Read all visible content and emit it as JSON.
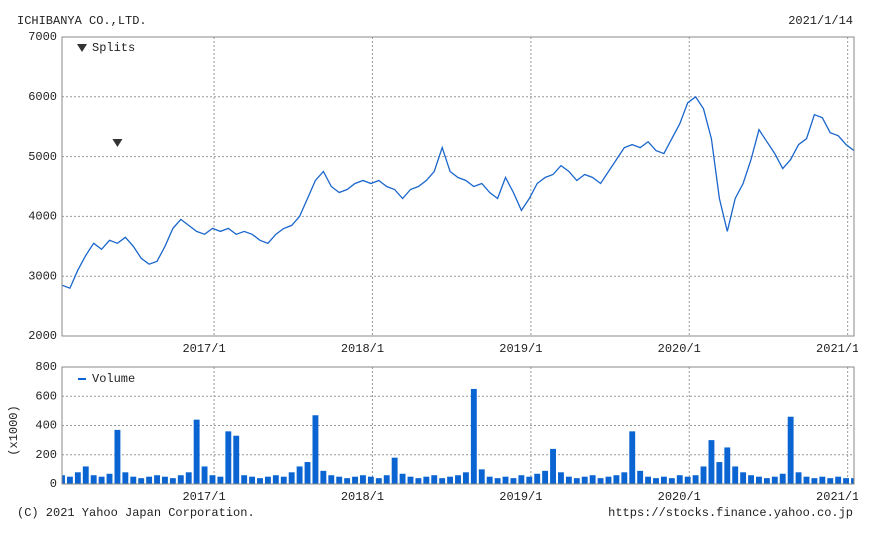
{
  "header": {
    "company": "ICHIBANYA CO.,LTD.",
    "date": "2021/1/14"
  },
  "footer": {
    "copyright": "(C) 2021 Yahoo Japan Corporation.",
    "url": "https://stocks.finance.yahoo.co.jp"
  },
  "chart_data": [
    {
      "type": "line",
      "color": "#1a66cc",
      "splits": {
        "name": "Splits",
        "x": [
          2016.39
        ]
      },
      "x": [
        2016.04,
        2016.09,
        2016.14,
        2016.19,
        2016.24,
        2016.29,
        2016.34,
        2016.39,
        2016.44,
        2016.49,
        2016.54,
        2016.59,
        2016.64,
        2016.69,
        2016.74,
        2016.79,
        2016.84,
        2016.89,
        2016.94,
        2016.99,
        2017.04,
        2017.09,
        2017.14,
        2017.19,
        2017.24,
        2017.29,
        2017.34,
        2017.39,
        2017.44,
        2017.49,
        2017.54,
        2017.59,
        2017.64,
        2017.69,
        2017.74,
        2017.79,
        2017.84,
        2017.89,
        2017.94,
        2017.99,
        2018.04,
        2018.09,
        2018.14,
        2018.19,
        2018.24,
        2018.29,
        2018.34,
        2018.39,
        2018.44,
        2018.49,
        2018.54,
        2018.59,
        2018.64,
        2018.69,
        2018.74,
        2018.79,
        2018.84,
        2018.89,
        2018.94,
        2018.99,
        2019.04,
        2019.09,
        2019.14,
        2019.19,
        2019.24,
        2019.29,
        2019.34,
        2019.39,
        2019.44,
        2019.49,
        2019.54,
        2019.59,
        2019.64,
        2019.69,
        2019.74,
        2019.79,
        2019.84,
        2019.89,
        2019.94,
        2019.99,
        2020.04,
        2020.09,
        2020.14,
        2020.19,
        2020.24,
        2020.29,
        2020.34,
        2020.39,
        2020.44,
        2020.49,
        2020.54,
        2020.59,
        2020.64,
        2020.69,
        2020.74,
        2020.79,
        2020.84,
        2020.89,
        2020.94,
        2020.99,
        2021.04
      ],
      "values": [
        2850,
        2800,
        3100,
        3350,
        3550,
        3450,
        3600,
        3550,
        3650,
        3500,
        3300,
        3200,
        3250,
        3500,
        3800,
        3950,
        3850,
        3750,
        3700,
        3800,
        3750,
        3800,
        3700,
        3750,
        3700,
        3600,
        3550,
        3700,
        3800,
        3850,
        4000,
        4300,
        4600,
        4750,
        4500,
        4400,
        4450,
        4550,
        4600,
        4550,
        4600,
        4500,
        4450,
        4300,
        4450,
        4500,
        4600,
        4750,
        5150,
        4750,
        4650,
        4600,
        4500,
        4550,
        4400,
        4300,
        4650,
        4400,
        4100,
        4300,
        4550,
        4650,
        4700,
        4850,
        4750,
        4600,
        4700,
        4650,
        4550,
        4750,
        4950,
        5150,
        5200,
        5150,
        5250,
        5100,
        5050,
        5300,
        5550,
        5900,
        6000,
        5800,
        5300,
        4300,
        3750,
        4300,
        4550,
        4950,
        5450,
        5250,
        5050,
        4800,
        4950,
        5200,
        5300,
        5700,
        5650,
        5400,
        5350,
        5200,
        5100
      ],
      "xlim": [
        2016.04,
        2021.04
      ],
      "xticks": [
        {
          "value": 2017.0,
          "label": "2017/1"
        },
        {
          "value": 2018.0,
          "label": "2018/1"
        },
        {
          "value": 2019.0,
          "label": "2019/1"
        },
        {
          "value": 2020.0,
          "label": "2020/1"
        },
        {
          "value": 2021.0,
          "label": "2021/1"
        }
      ],
      "ylim": [
        2000,
        7000
      ],
      "yticks": [
        2000,
        3000,
        4000,
        5000,
        6000,
        7000
      ],
      "grid": true
    },
    {
      "type": "bar",
      "color": "#0a64d2",
      "name": "Volume",
      "ylabel": "(x1000)",
      "x": [
        2016.04,
        2016.09,
        2016.14,
        2016.19,
        2016.24,
        2016.29,
        2016.34,
        2016.39,
        2016.44,
        2016.49,
        2016.54,
        2016.59,
        2016.64,
        2016.69,
        2016.74,
        2016.79,
        2016.84,
        2016.89,
        2016.94,
        2016.99,
        2017.04,
        2017.09,
        2017.14,
        2017.19,
        2017.24,
        2017.29,
        2017.34,
        2017.39,
        2017.44,
        2017.49,
        2017.54,
        2017.59,
        2017.64,
        2017.69,
        2017.74,
        2017.79,
        2017.84,
        2017.89,
        2017.94,
        2017.99,
        2018.04,
        2018.09,
        2018.14,
        2018.19,
        2018.24,
        2018.29,
        2018.34,
        2018.39,
        2018.44,
        2018.49,
        2018.54,
        2018.59,
        2018.64,
        2018.69,
        2018.74,
        2018.79,
        2018.84,
        2018.89,
        2018.94,
        2018.99,
        2019.04,
        2019.09,
        2019.14,
        2019.19,
        2019.24,
        2019.29,
        2019.34,
        2019.39,
        2019.44,
        2019.49,
        2019.54,
        2019.59,
        2019.64,
        2019.69,
        2019.74,
        2019.79,
        2019.84,
        2019.89,
        2019.94,
        2019.99,
        2020.04,
        2020.09,
        2020.14,
        2020.19,
        2020.24,
        2020.29,
        2020.34,
        2020.39,
        2020.44,
        2020.49,
        2020.54,
        2020.59,
        2020.64,
        2020.69,
        2020.74,
        2020.79,
        2020.84,
        2020.89,
        2020.94,
        2020.99,
        2021.04
      ],
      "values": [
        60,
        50,
        80,
        120,
        60,
        50,
        70,
        370,
        80,
        50,
        40,
        50,
        60,
        50,
        40,
        60,
        80,
        440,
        120,
        60,
        50,
        360,
        330,
        60,
        50,
        40,
        50,
        60,
        50,
        80,
        120,
        150,
        470,
        90,
        60,
        50,
        40,
        50,
        60,
        50,
        40,
        60,
        180,
        70,
        50,
        40,
        50,
        60,
        40,
        50,
        60,
        80,
        650,
        100,
        50,
        40,
        50,
        40,
        60,
        50,
        70,
        90,
        240,
        80,
        50,
        40,
        50,
        60,
        40,
        50,
        60,
        80,
        360,
        90,
        50,
        40,
        50,
        40,
        60,
        50,
        60,
        120,
        300,
        150,
        250,
        120,
        80,
        60,
        50,
        40,
        50,
        70,
        460,
        80,
        50,
        40,
        50,
        40,
        50,
        40,
        40
      ],
      "xlim": [
        2016.04,
        2021.04
      ],
      "xticks": [
        {
          "value": 2017.0,
          "label": "2017/1"
        },
        {
          "value": 2018.0,
          "label": "2018/1"
        },
        {
          "value": 2019.0,
          "label": "2019/1"
        },
        {
          "value": 2020.0,
          "label": "2020/1"
        },
        {
          "value": 2021.0,
          "label": "2021/1"
        }
      ],
      "ylim": [
        0,
        800
      ],
      "yticks": [
        0,
        200,
        400,
        600,
        800
      ],
      "grid": true
    }
  ]
}
